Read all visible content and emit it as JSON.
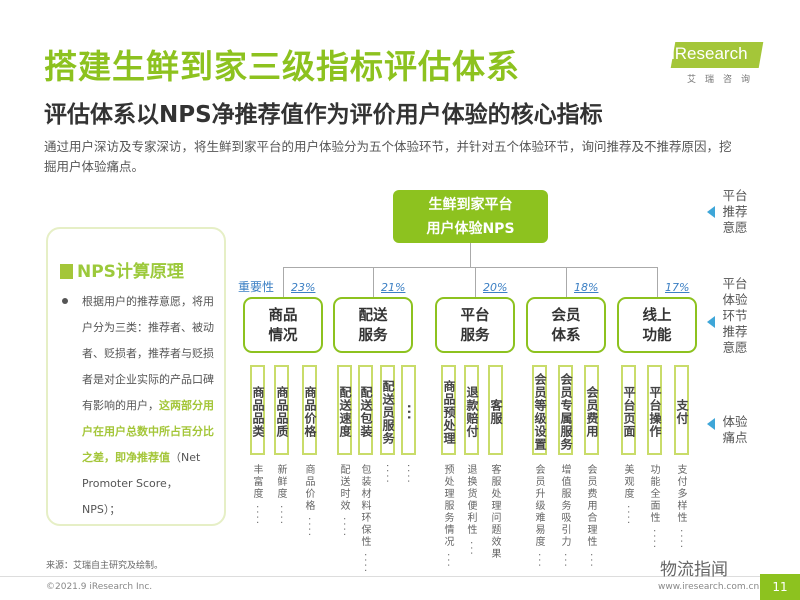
{
  "title": "搭建生鲜到家三级指标评估体系",
  "subtitle": "评估体系以NPS净推荐值作为评价用户体验的核心指标",
  "intro": "通过用户深访及专家深访，将生鲜到家平台的用户体验分为五个体验环节，并针对五个体验环节，询问推荐及不推荐原因，挖掘用户体验痛点。",
  "logo": {
    "word": "iResearch",
    "cn": "艾瑞咨询"
  },
  "nps_box": {
    "heading": "NPS计算原理",
    "text_plain": "根据用户的推荐意愿，将用户分为三类：推荐者、被动者、贬损者，推荐者与贬损者是对企业实际的产品口碑有影响的用户，",
    "text_highlight": "这两部分用户在用户总数中所占百分比之差，即净推荐值",
    "text_tail": "（Net Promoter Score，NPS）；"
  },
  "root": {
    "line1": "生鲜到家平台",
    "line2": "用户体验NPS"
  },
  "importance_label": "重要性",
  "groups": [
    {
      "line1": "商品",
      "line2": "情况",
      "pct": "23%",
      "subs": [
        {
          "label": "商品品类",
          "desc": "丰富度 ····"
        },
        {
          "label": "商品品质",
          "desc": "新鲜度 ····"
        },
        {
          "label": "商品价格",
          "desc": "商品价格 ····"
        }
      ]
    },
    {
      "line1": "配送",
      "line2": "服务",
      "pct": "21%",
      "subs": [
        {
          "label": "配送速度",
          "desc": "配送时效 ····"
        },
        {
          "label": "配送包装",
          "desc": "包装材料环保性 ····"
        },
        {
          "label": "配送员服务",
          "desc": "····"
        },
        {
          "label": "···",
          "desc": "····"
        }
      ]
    },
    {
      "line1": "平台",
      "line2": "服务",
      "pct": "20%",
      "subs": [
        {
          "label": "商品预处理",
          "desc": "预处理服务情况 ···"
        },
        {
          "label": "退款赔付",
          "desc": "退换货便利性 ···"
        },
        {
          "label": "客服",
          "desc": "客服处理问题效果"
        }
      ]
    },
    {
      "line1": "会员",
      "line2": "体系",
      "pct": "18%",
      "subs": [
        {
          "label": "会员等级设置",
          "desc": "会员升级难易度 ···"
        },
        {
          "label": "会员专属服务",
          "desc": "增值服务吸引力 ···"
        },
        {
          "label": "会员费用",
          "desc": "会员费用合理性 ···"
        }
      ]
    },
    {
      "line1": "线上",
      "line2": "功能",
      "pct": "17%",
      "subs": [
        {
          "label": "平台页面",
          "desc": "美观度 ····"
        },
        {
          "label": "平台操作",
          "desc": "功能全面性 ····"
        },
        {
          "label": "支付",
          "desc": "支付多样性 ····"
        }
      ]
    }
  ],
  "right_labels": [
    "平台推荐意愿",
    "平台体验环节推荐意愿",
    "体验痛点"
  ],
  "source": "来源：艾瑞自主研究及绘制。",
  "copyright": "©2021.9 iResearch Inc.",
  "url": "www.iresearch.com.cn",
  "watermark": "物流指闻",
  "page": "11",
  "colors": {
    "accent": "#8dc21f",
    "pct": "#3b7fc4",
    "arrow": "#3ea6d8"
  }
}
